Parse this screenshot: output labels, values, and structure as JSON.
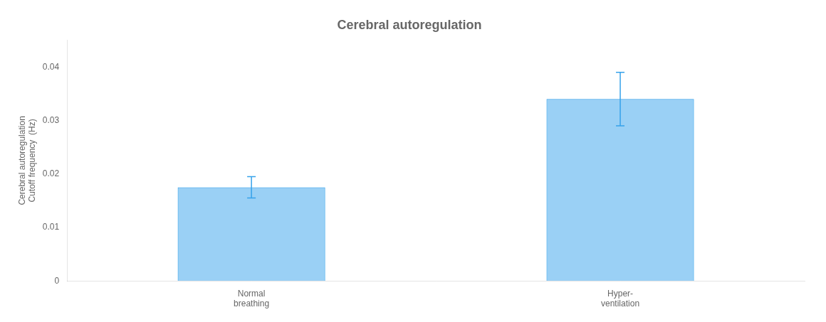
{
  "chart_data": {
    "type": "bar",
    "title": "Cerebral autoregulation",
    "categories": [
      "Normal\nbreathing",
      "Hyper-\nventilation"
    ],
    "values": [
      0.0175,
      0.034
    ],
    "errors": [
      0.002,
      0.005
    ],
    "ylabel": "Cerebral autoregulation\nCutoff frequency  (Hz)",
    "ylim": [
      0,
      0.045
    ],
    "yticks": [
      0,
      0.01,
      0.02,
      0.03,
      0.04
    ],
    "grid": false
  }
}
